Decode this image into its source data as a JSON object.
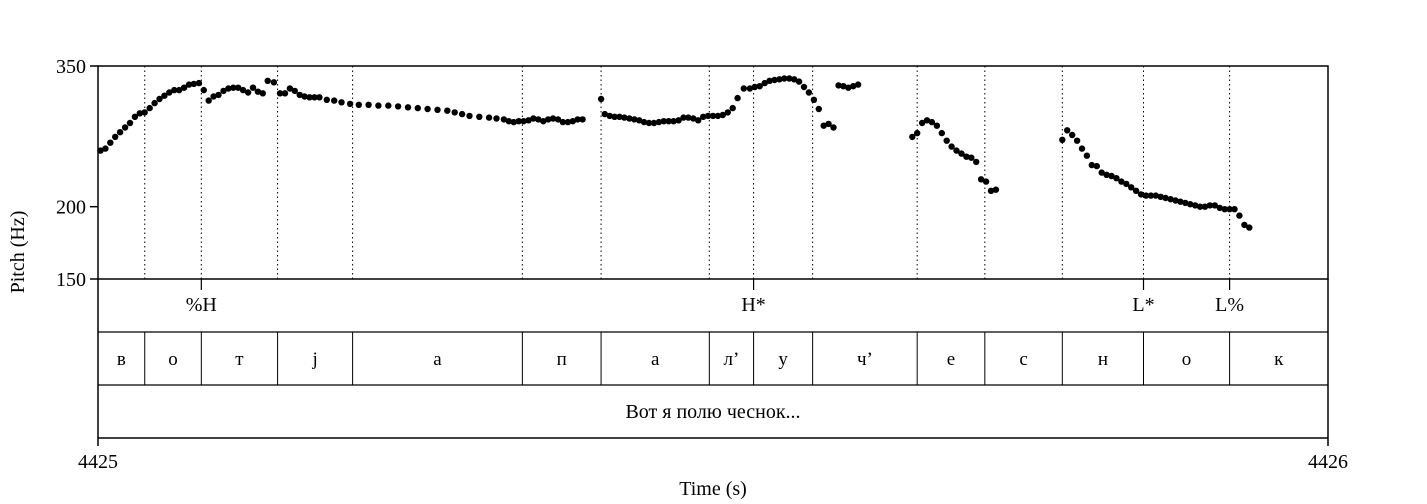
{
  "chart_data": {
    "type": "scatter",
    "title": "",
    "xlabel": "Time (s)",
    "ylabel": "Pitch (Hz)",
    "x_tick_labels": [
      "4425",
      "4426"
    ],
    "xlim": [
      0,
      1
    ],
    "ylim": [
      150,
      350
    ],
    "y_scale": "log",
    "y_ticks": [
      150,
      200,
      350
    ],
    "y_tick_labels": [
      "150",
      "200",
      "350"
    ],
    "grid": false,
    "tones": [
      {
        "t": 0.084,
        "label": "%H"
      },
      {
        "t": 0.533,
        "label": "H*"
      },
      {
        "t": 0.85,
        "label": "L*"
      },
      {
        "t": 0.92,
        "label": "L%"
      }
    ],
    "segments": [
      {
        "start": 0.0,
        "end": 0.038,
        "label": "в"
      },
      {
        "start": 0.038,
        "end": 0.084,
        "label": "о"
      },
      {
        "start": 0.084,
        "end": 0.146,
        "label": "т"
      },
      {
        "start": 0.146,
        "end": 0.207,
        "label": "j"
      },
      {
        "start": 0.207,
        "end": 0.345,
        "label": "а"
      },
      {
        "start": 0.345,
        "end": 0.409,
        "label": "п"
      },
      {
        "start": 0.409,
        "end": 0.497,
        "label": "а"
      },
      {
        "start": 0.497,
        "end": 0.533,
        "label": "л’"
      },
      {
        "start": 0.533,
        "end": 0.581,
        "label": "у"
      },
      {
        "start": 0.581,
        "end": 0.666,
        "label": "ч’"
      },
      {
        "start": 0.666,
        "end": 0.721,
        "label": "е"
      },
      {
        "start": 0.721,
        "end": 0.784,
        "label": "с"
      },
      {
        "start": 0.784,
        "end": 0.85,
        "label": "н"
      },
      {
        "start": 0.85,
        "end": 0.92,
        "label": "о"
      },
      {
        "start": 0.92,
        "end": 1.0,
        "label": "к"
      }
    ],
    "utterance": "Вот я полю чеснок...",
    "series": [
      {
        "points": [
          [
            0.002,
            250
          ],
          [
            0.006,
            252
          ],
          [
            0.01,
            258
          ],
          [
            0.014,
            264
          ],
          [
            0.018,
            269
          ],
          [
            0.022,
            274
          ],
          [
            0.026,
            279
          ],
          [
            0.03,
            286
          ],
          [
            0.034,
            290
          ],
          [
            0.038,
            291
          ],
          [
            0.042,
            296
          ],
          [
            0.046,
            302
          ],
          [
            0.05,
            307
          ],
          [
            0.054,
            311
          ],
          [
            0.058,
            315
          ],
          [
            0.062,
            318
          ],
          [
            0.066,
            318
          ],
          [
            0.07,
            321
          ],
          [
            0.074,
            325
          ],
          [
            0.078,
            326
          ],
          [
            0.082,
            327
          ],
          [
            0.086,
            318
          ],
          [
            0.09,
            305
          ],
          [
            0.094,
            310
          ],
          [
            0.098,
            312
          ],
          [
            0.102,
            317
          ],
          [
            0.106,
            320
          ],
          [
            0.11,
            321
          ],
          [
            0.114,
            321
          ],
          [
            0.118,
            318
          ],
          [
            0.122,
            315
          ],
          [
            0.126,
            321
          ],
          [
            0.13,
            316
          ],
          [
            0.134,
            314
          ],
          [
            0.138,
            330
          ],
          [
            0.143,
            328
          ],
          [
            0.148,
            314
          ],
          [
            0.152,
            314
          ],
          [
            0.156,
            320
          ],
          [
            0.16,
            317
          ],
          [
            0.164,
            312
          ],
          [
            0.168,
            310
          ],
          [
            0.172,
            309
          ],
          [
            0.176,
            309
          ],
          [
            0.18,
            309
          ],
          [
            0.186,
            306
          ],
          [
            0.192,
            305
          ],
          [
            0.198,
            303
          ],
          [
            0.205,
            301
          ],
          [
            0.212,
            300
          ],
          [
            0.22,
            300
          ],
          [
            0.228,
            299
          ],
          [
            0.236,
            299
          ],
          [
            0.244,
            298
          ],
          [
            0.252,
            297
          ],
          [
            0.26,
            296
          ],
          [
            0.268,
            295
          ],
          [
            0.276,
            294
          ],
          [
            0.284,
            293
          ],
          [
            0.29,
            291
          ],
          [
            0.296,
            289
          ],
          [
            0.302,
            287
          ],
          [
            0.31,
            286
          ],
          [
            0.318,
            285
          ],
          [
            0.324,
            284
          ],
          [
            0.33,
            283
          ],
          [
            0.334,
            281
          ],
          [
            0.338,
            280
          ],
          [
            0.342,
            281
          ],
          [
            0.346,
            281
          ],
          [
            0.35,
            282
          ],
          [
            0.354,
            284
          ],
          [
            0.358,
            283
          ],
          [
            0.362,
            281
          ],
          [
            0.366,
            283
          ],
          [
            0.37,
            284
          ],
          [
            0.374,
            283
          ],
          [
            0.378,
            280
          ],
          [
            0.382,
            280
          ],
          [
            0.386,
            281
          ],
          [
            0.39,
            283
          ],
          [
            0.394,
            283
          ],
          [
            0.409,
            307
          ],
          [
            0.412,
            289
          ],
          [
            0.416,
            287
          ],
          [
            0.42,
            286
          ],
          [
            0.424,
            286
          ],
          [
            0.428,
            285
          ],
          [
            0.432,
            284
          ],
          [
            0.436,
            283
          ],
          [
            0.44,
            282
          ],
          [
            0.444,
            280
          ],
          [
            0.448,
            279
          ],
          [
            0.452,
            279
          ],
          [
            0.456,
            280
          ],
          [
            0.46,
            281
          ],
          [
            0.464,
            281
          ],
          [
            0.468,
            281
          ],
          [
            0.472,
            282
          ],
          [
            0.476,
            285
          ],
          [
            0.48,
            285
          ],
          [
            0.484,
            284
          ],
          [
            0.488,
            282
          ],
          [
            0.492,
            286
          ],
          [
            0.496,
            287
          ],
          [
            0.5,
            287
          ],
          [
            0.504,
            287
          ],
          [
            0.508,
            288
          ],
          [
            0.512,
            291
          ],
          [
            0.516,
            296
          ],
          [
            0.52,
            308
          ],
          [
            0.525,
            320
          ],
          [
            0.53,
            320
          ],
          [
            0.534,
            322
          ],
          [
            0.538,
            323
          ],
          [
            0.542,
            327
          ],
          [
            0.546,
            330
          ],
          [
            0.55,
            331
          ],
          [
            0.554,
            332
          ],
          [
            0.558,
            333
          ],
          [
            0.562,
            333
          ],
          [
            0.566,
            332
          ],
          [
            0.57,
            329
          ],
          [
            0.574,
            322
          ],
          [
            0.578,
            315
          ],
          [
            0.582,
            306
          ],
          [
            0.586,
            295
          ],
          [
            0.59,
            276
          ],
          [
            0.594,
            278
          ],
          [
            0.598,
            274
          ],
          [
            0.602,
            324
          ],
          [
            0.606,
            323
          ],
          [
            0.61,
            321
          ],
          [
            0.614,
            323
          ],
          [
            0.618,
            325
          ],
          [
            0.662,
            264
          ],
          [
            0.666,
            268
          ],
          [
            0.67,
            279
          ],
          [
            0.674,
            282
          ],
          [
            0.678,
            280
          ],
          [
            0.682,
            276
          ],
          [
            0.686,
            268
          ],
          [
            0.69,
            260
          ],
          [
            0.694,
            254
          ],
          [
            0.698,
            250
          ],
          [
            0.702,
            247
          ],
          [
            0.706,
            244
          ],
          [
            0.71,
            243
          ],
          [
            0.714,
            239
          ],
          [
            0.718,
            223
          ],
          [
            0.722,
            221
          ],
          [
            0.726,
            213
          ],
          [
            0.73,
            214
          ],
          [
            0.784,
            261
          ],
          [
            0.788,
            271
          ],
          [
            0.792,
            266
          ],
          [
            0.796,
            260
          ],
          [
            0.8,
            252
          ],
          [
            0.804,
            245
          ],
          [
            0.808,
            236
          ],
          [
            0.812,
            235
          ],
          [
            0.816,
            229
          ],
          [
            0.82,
            227
          ],
          [
            0.824,
            226
          ],
          [
            0.828,
            224
          ],
          [
            0.832,
            221
          ],
          [
            0.836,
            219
          ],
          [
            0.84,
            216
          ],
          [
            0.844,
            213
          ],
          [
            0.848,
            210
          ],
          [
            0.852,
            209
          ],
          [
            0.856,
            209
          ],
          [
            0.86,
            209
          ],
          [
            0.864,
            208
          ],
          [
            0.868,
            207
          ],
          [
            0.872,
            206
          ],
          [
            0.876,
            205
          ],
          [
            0.88,
            204
          ],
          [
            0.884,
            203
          ],
          [
            0.888,
            202
          ],
          [
            0.892,
            201
          ],
          [
            0.896,
            200
          ],
          [
            0.9,
            200
          ],
          [
            0.904,
            201
          ],
          [
            0.908,
            201
          ],
          [
            0.912,
            199
          ],
          [
            0.916,
            198
          ],
          [
            0.92,
            198
          ],
          [
            0.924,
            198
          ],
          [
            0.928,
            193
          ],
          [
            0.932,
            186
          ],
          [
            0.936,
            184
          ]
        ]
      }
    ]
  }
}
